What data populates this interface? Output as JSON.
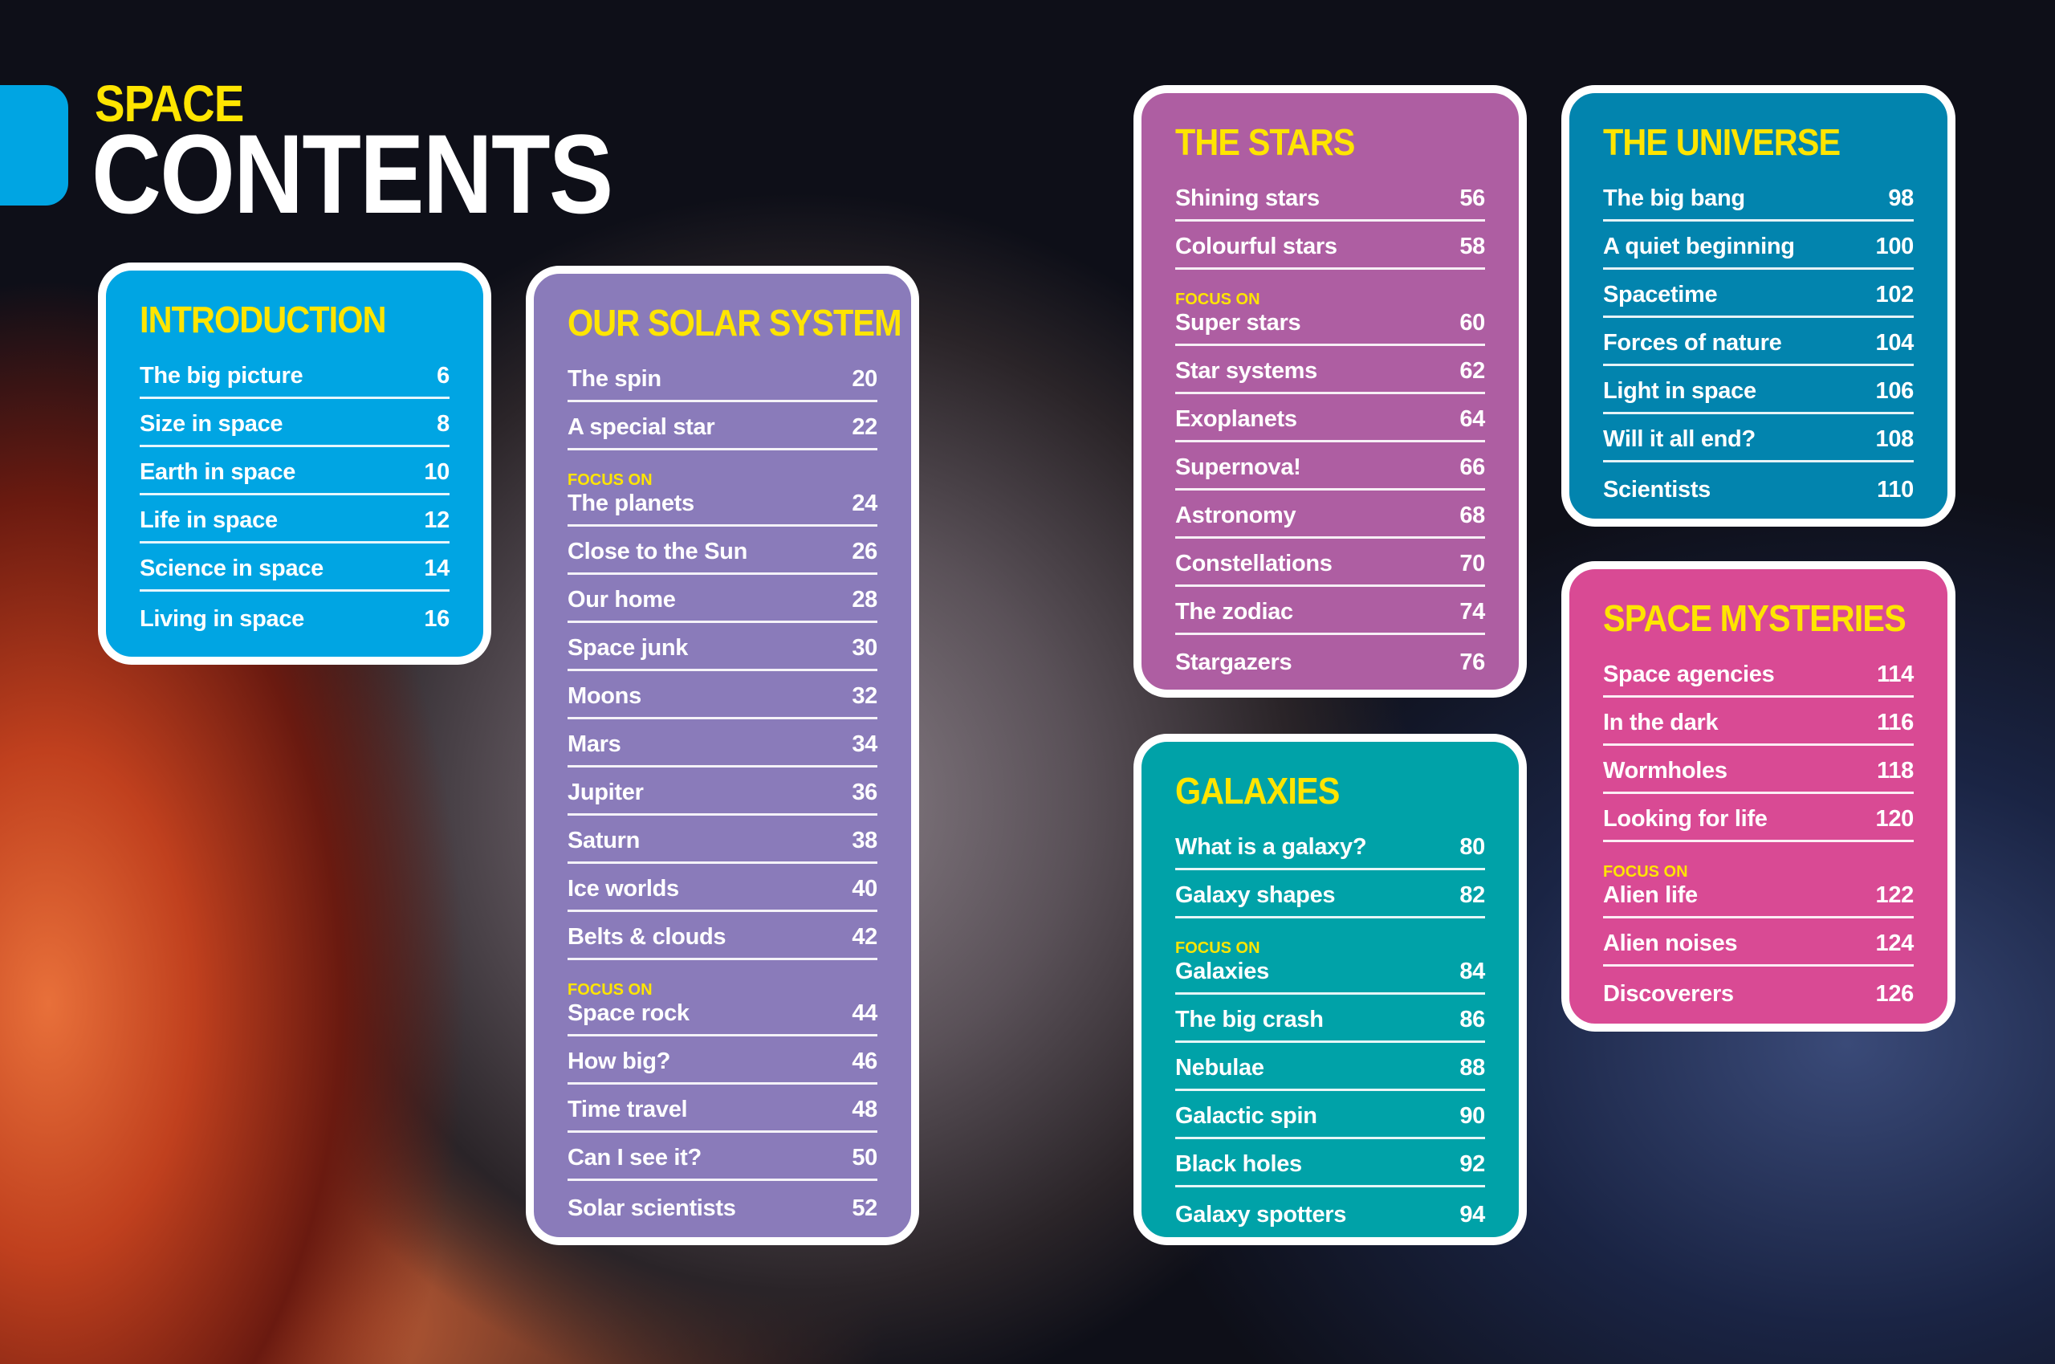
{
  "header": {
    "kicker": "SPACE",
    "title": "CONTENTS",
    "tab_color": "#00a5e3"
  },
  "focus_label": "FOCUS ON",
  "sections": [
    {
      "id": "introduction",
      "title": "INTRODUCTION",
      "color": "#00a5e3",
      "items": [
        {
          "label": "The big picture",
          "page": "6"
        },
        {
          "label": "Size in space",
          "page": "8"
        },
        {
          "label": "Earth in space",
          "page": "10"
        },
        {
          "label": "Life in space",
          "page": "12"
        },
        {
          "label": "Science in space",
          "page": "14"
        },
        {
          "label": "Living in space",
          "page": "16"
        }
      ]
    },
    {
      "id": "our-solar-system",
      "title": "OUR SOLAR SYSTEM",
      "color": "#8a7bba",
      "items": [
        {
          "label": "The spin",
          "page": "20"
        },
        {
          "label": "A special star",
          "page": "22"
        },
        {
          "label": "The planets",
          "page": "24",
          "focus": true
        },
        {
          "label": "Close to the Sun",
          "page": "26"
        },
        {
          "label": "Our home",
          "page": "28"
        },
        {
          "label": "Space junk",
          "page": "30"
        },
        {
          "label": "Moons",
          "page": "32"
        },
        {
          "label": "Mars",
          "page": "34"
        },
        {
          "label": "Jupiter",
          "page": "36"
        },
        {
          "label": "Saturn",
          "page": "38"
        },
        {
          "label": "Ice worlds",
          "page": "40"
        },
        {
          "label": "Belts & clouds",
          "page": "42"
        },
        {
          "label": "Space rock",
          "page": "44",
          "focus": true
        },
        {
          "label": "How big?",
          "page": "46"
        },
        {
          "label": "Time travel",
          "page": "48"
        },
        {
          "label": "Can I see it?",
          "page": "50"
        },
        {
          "label": "Solar scientists",
          "page": "52"
        }
      ]
    },
    {
      "id": "the-stars",
      "title": "THE STARS",
      "color": "#ae5ea2",
      "items": [
        {
          "label": "Shining stars",
          "page": "56"
        },
        {
          "label": "Colourful stars",
          "page": "58"
        },
        {
          "label": "Super stars",
          "page": "60",
          "focus": true
        },
        {
          "label": "Star systems",
          "page": "62"
        },
        {
          "label": "Exoplanets",
          "page": "64"
        },
        {
          "label": "Supernova!",
          "page": "66"
        },
        {
          "label": "Astronomy",
          "page": "68"
        },
        {
          "label": "Constellations",
          "page": "70"
        },
        {
          "label": "The zodiac",
          "page": "74"
        },
        {
          "label": "Stargazers",
          "page": "76"
        }
      ]
    },
    {
      "id": "galaxies",
      "title": "GALAXIES",
      "color": "#00a2a8",
      "items": [
        {
          "label": "What is a galaxy?",
          "page": "80"
        },
        {
          "label": "Galaxy shapes",
          "page": "82"
        },
        {
          "label": "Galaxies",
          "page": "84",
          "focus": true
        },
        {
          "label": "The big crash",
          "page": "86"
        },
        {
          "label": "Nebulae",
          "page": "88"
        },
        {
          "label": "Galactic spin",
          "page": "90"
        },
        {
          "label": "Black holes",
          "page": "92"
        },
        {
          "label": "Galaxy spotters",
          "page": "94"
        }
      ]
    },
    {
      "id": "the-universe",
      "title": "THE UNIVERSE",
      "color": "#0284ae",
      "items": [
        {
          "label": "The big bang",
          "page": "98"
        },
        {
          "label": "A quiet beginning",
          "page": "100"
        },
        {
          "label": "Spacetime",
          "page": "102"
        },
        {
          "label": "Forces of nature",
          "page": "104"
        },
        {
          "label": "Light in space",
          "page": "106"
        },
        {
          "label": "Will it all end?",
          "page": "108"
        },
        {
          "label": "Scientists",
          "page": "110"
        }
      ]
    },
    {
      "id": "space-mysteries",
      "title": "SPACE MYSTERIES",
      "color": "#d94a94",
      "items": [
        {
          "label": "Space agencies",
          "page": "114"
        },
        {
          "label": "In the dark",
          "page": "116"
        },
        {
          "label": "Wormholes",
          "page": "118"
        },
        {
          "label": "Looking for life",
          "page": "120"
        },
        {
          "label": "Alien life",
          "page": "122",
          "focus": true
        },
        {
          "label": "Alien noises",
          "page": "124"
        },
        {
          "label": "Discoverers",
          "page": "126"
        }
      ]
    }
  ]
}
